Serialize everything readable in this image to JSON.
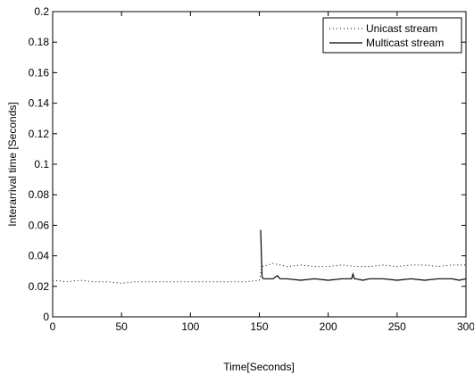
{
  "chart_data": {
    "type": "line",
    "title": "",
    "xlabel": "Time[Seconds]",
    "ylabel": "Interarrival time [Seconds]",
    "xlim": [
      0,
      300
    ],
    "ylim": [
      0,
      0.2
    ],
    "xticks": [
      0,
      50,
      100,
      150,
      200,
      250,
      300
    ],
    "xtick_labels": [
      "0",
      "50",
      "100",
      "150",
      "200",
      "250",
      "300"
    ],
    "yticks": [
      0,
      0.02,
      0.04,
      0.06,
      0.08,
      0.1,
      0.12,
      0.14,
      0.16,
      0.18,
      0.2
    ],
    "ytick_labels": [
      "0",
      "0.02",
      "0.04",
      "0.06",
      "0.08",
      "0.1",
      "0.12",
      "0.14",
      "0.16",
      "0.18",
      "0.2"
    ],
    "grid": false,
    "legend_position": "top-right",
    "series": [
      {
        "name": "Unicast stream",
        "style": "dotted",
        "color": "#000000",
        "x": [
          0,
          10,
          20,
          30,
          40,
          50,
          60,
          70,
          80,
          90,
          100,
          110,
          120,
          130,
          140,
          150,
          152,
          160,
          170,
          180,
          190,
          200,
          210,
          220,
          230,
          240,
          250,
          260,
          270,
          280,
          290,
          300
        ],
        "y": [
          0.024,
          0.023,
          0.024,
          0.023,
          0.023,
          0.022,
          0.023,
          0.023,
          0.023,
          0.023,
          0.023,
          0.023,
          0.023,
          0.023,
          0.023,
          0.024,
          0.033,
          0.035,
          0.033,
          0.034,
          0.033,
          0.033,
          0.034,
          0.033,
          0.033,
          0.034,
          0.033,
          0.034,
          0.034,
          0.033,
          0.034,
          0.034
        ]
      },
      {
        "name": "Multicast stream",
        "style": "solid",
        "color": "#000000",
        "x": [
          151,
          152,
          153,
          155,
          160,
          163,
          165,
          170,
          180,
          190,
          200,
          210,
          217,
          218,
          219,
          220,
          225,
          230,
          240,
          250,
          260,
          270,
          280,
          290,
          295,
          300
        ],
        "y": [
          0.057,
          0.026,
          0.025,
          0.025,
          0.025,
          0.027,
          0.025,
          0.025,
          0.024,
          0.025,
          0.024,
          0.025,
          0.025,
          0.028,
          0.025,
          0.025,
          0.024,
          0.025,
          0.025,
          0.024,
          0.025,
          0.024,
          0.025,
          0.025,
          0.024,
          0.025
        ]
      }
    ]
  }
}
